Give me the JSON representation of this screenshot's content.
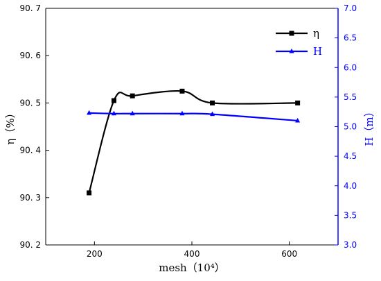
{
  "chart_data": {
    "type": "line",
    "xlabel": "mesh（10⁴）",
    "ylabel_left": "η（%）",
    "ylabel_right": "H（m）",
    "xlim": [
      100,
      700
    ],
    "ylim_left": [
      90.2,
      90.7
    ],
    "ylim_right": [
      3.0,
      7.0
    ],
    "x_ticks": [
      200,
      400,
      600
    ],
    "y_left_ticks": [
      90.2,
      90.3,
      90.4,
      90.5,
      90.6,
      90.7
    ],
    "y_right_ticks": [
      3.0,
      3.5,
      4.0,
      4.5,
      5.0,
      5.5,
      6.0,
      6.5,
      7.0
    ],
    "legend_position": "top-right",
    "series": [
      {
        "name": "η",
        "axis": "left",
        "color": "#000000",
        "marker": "square",
        "x": [
          189,
          240,
          278,
          380,
          442,
          617
        ],
        "y": [
          90.31,
          90.505,
          90.515,
          90.525,
          90.5,
          90.5
        ]
      },
      {
        "name": "H",
        "axis": "right",
        "color": "#0000ff",
        "marker": "triangle",
        "x": [
          189,
          240,
          278,
          380,
          442,
          617
        ],
        "y": [
          5.23,
          5.22,
          5.22,
          5.22,
          5.21,
          5.1
        ]
      }
    ]
  }
}
